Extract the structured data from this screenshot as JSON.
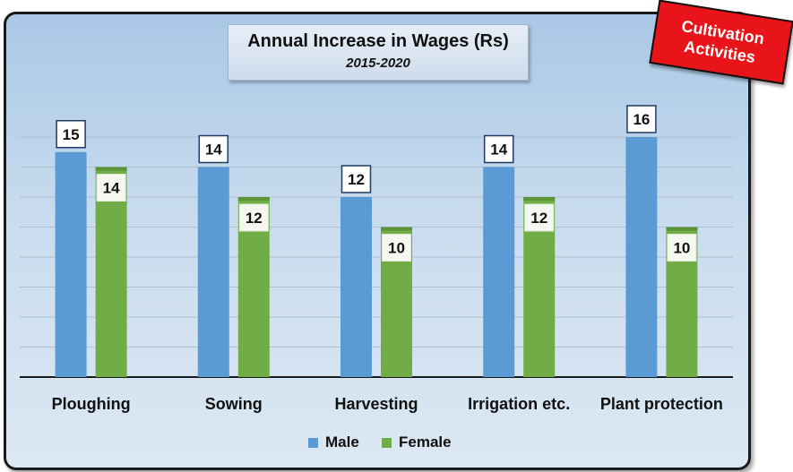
{
  "badge": {
    "text": "Cultivation Activities"
  },
  "colors": {
    "male": "#5b9bd5",
    "female": "#70ad47"
  },
  "chart_data": {
    "type": "bar",
    "title": "Annual Increase in Wages (Rs)",
    "subtitle": "2015-2020",
    "xlabel": "",
    "ylabel": "",
    "ylim": [
      0,
      18
    ],
    "grid": true,
    "legend_position": "bottom",
    "categories": [
      "Ploughing",
      "Sowing",
      "Harvesting",
      "Irrigation etc.",
      "Plant protection"
    ],
    "series": [
      {
        "name": "Male",
        "values": [
          15,
          14,
          12,
          14,
          16
        ]
      },
      {
        "name": "Female",
        "values": [
          14,
          12,
          10,
          12,
          10
        ]
      }
    ]
  }
}
